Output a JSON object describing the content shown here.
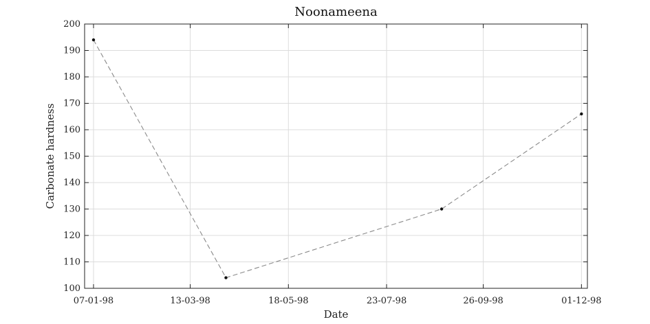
{
  "chart_data": {
    "type": "line",
    "title": "Noonameena",
    "xlabel": "Date",
    "ylabel": "Carbonate hardness",
    "x_type": "date",
    "xlim": [
      "1998-01-01",
      "1998-12-05"
    ],
    "ylim": [
      100,
      200
    ],
    "x_ticks": [
      "1998-01-07",
      "1998-03-13",
      "1998-05-18",
      "1998-07-23",
      "1998-09-26",
      "1998-12-01"
    ],
    "x_tick_labels": [
      "07-01-98",
      "13-03-98",
      "18-05-98",
      "23-07-98",
      "26-09-98",
      "01-12-98"
    ],
    "y_ticks": [
      100,
      110,
      120,
      130,
      140,
      150,
      160,
      170,
      180,
      190,
      200
    ],
    "grid": true,
    "series": [
      {
        "x": [
          "1998-01-07",
          "1998-04-06",
          "1998-08-29",
          "1998-12-01"
        ],
        "y": [
          194,
          104,
          130,
          166
        ],
        "line_style": "dashed",
        "line_color": "#8a8a8a",
        "marker_color": "#111111"
      }
    ]
  }
}
